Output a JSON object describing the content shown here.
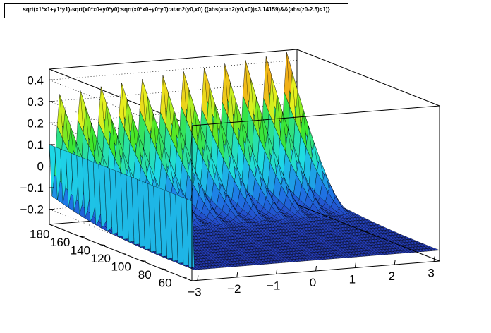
{
  "title": "sqrt(x1*x1+y1*y1)-sqrt(x0*x0+y0*y0):sqrt(x0*x0+y0*y0):atan2(y0,x0) {(abs(atan2(y0,x0))<3.14159)&&(abs(z0-2.5)<1)}",
  "chart_data": {
    "type": "surface",
    "title": "sqrt(x1*x1+y1*y1)-sqrt(x0*x0+y0*y0):sqrt(x0*x0+y0*y0):atan2(y0,x0) {(abs(atan2(y0,x0))<3.14159)&&(abs(z0-2.5)<1)}",
    "xlabel": "",
    "ylabel": "",
    "zlabel": "",
    "x_axis": {
      "ticks": [
        -3,
        -2,
        -1,
        0,
        1,
        2,
        3
      ],
      "range": [
        -3.14159,
        3.14159
      ]
    },
    "y_axis": {
      "ticks": [
        60,
        80,
        100,
        120,
        140,
        160,
        180
      ],
      "range": [
        50,
        190
      ]
    },
    "z_axis": {
      "ticks": [
        -0.2,
        -0.1,
        0,
        0.1,
        0.2,
        0.3,
        0.4
      ],
      "range": [
        -0.27,
        0.45
      ]
    },
    "palette": "rainbow (blue to green to yellow to red)",
    "grid": true,
    "features": {
      "peak_count": 12,
      "peak_x": [
        -2.88,
        -2.36,
        -1.83,
        -1.31,
        -0.79,
        -0.26,
        0.26,
        0.79,
        1.31,
        1.83,
        2.36,
        2.88
      ],
      "peak_heights": [
        0.33,
        0.34,
        0.35,
        0.36,
        0.37,
        0.38,
        0.39,
        0.4,
        0.41,
        0.42,
        0.43,
        0.44
      ],
      "plateau_value_at_left_edge": 0.1,
      "floor_value": -0.22
    }
  }
}
